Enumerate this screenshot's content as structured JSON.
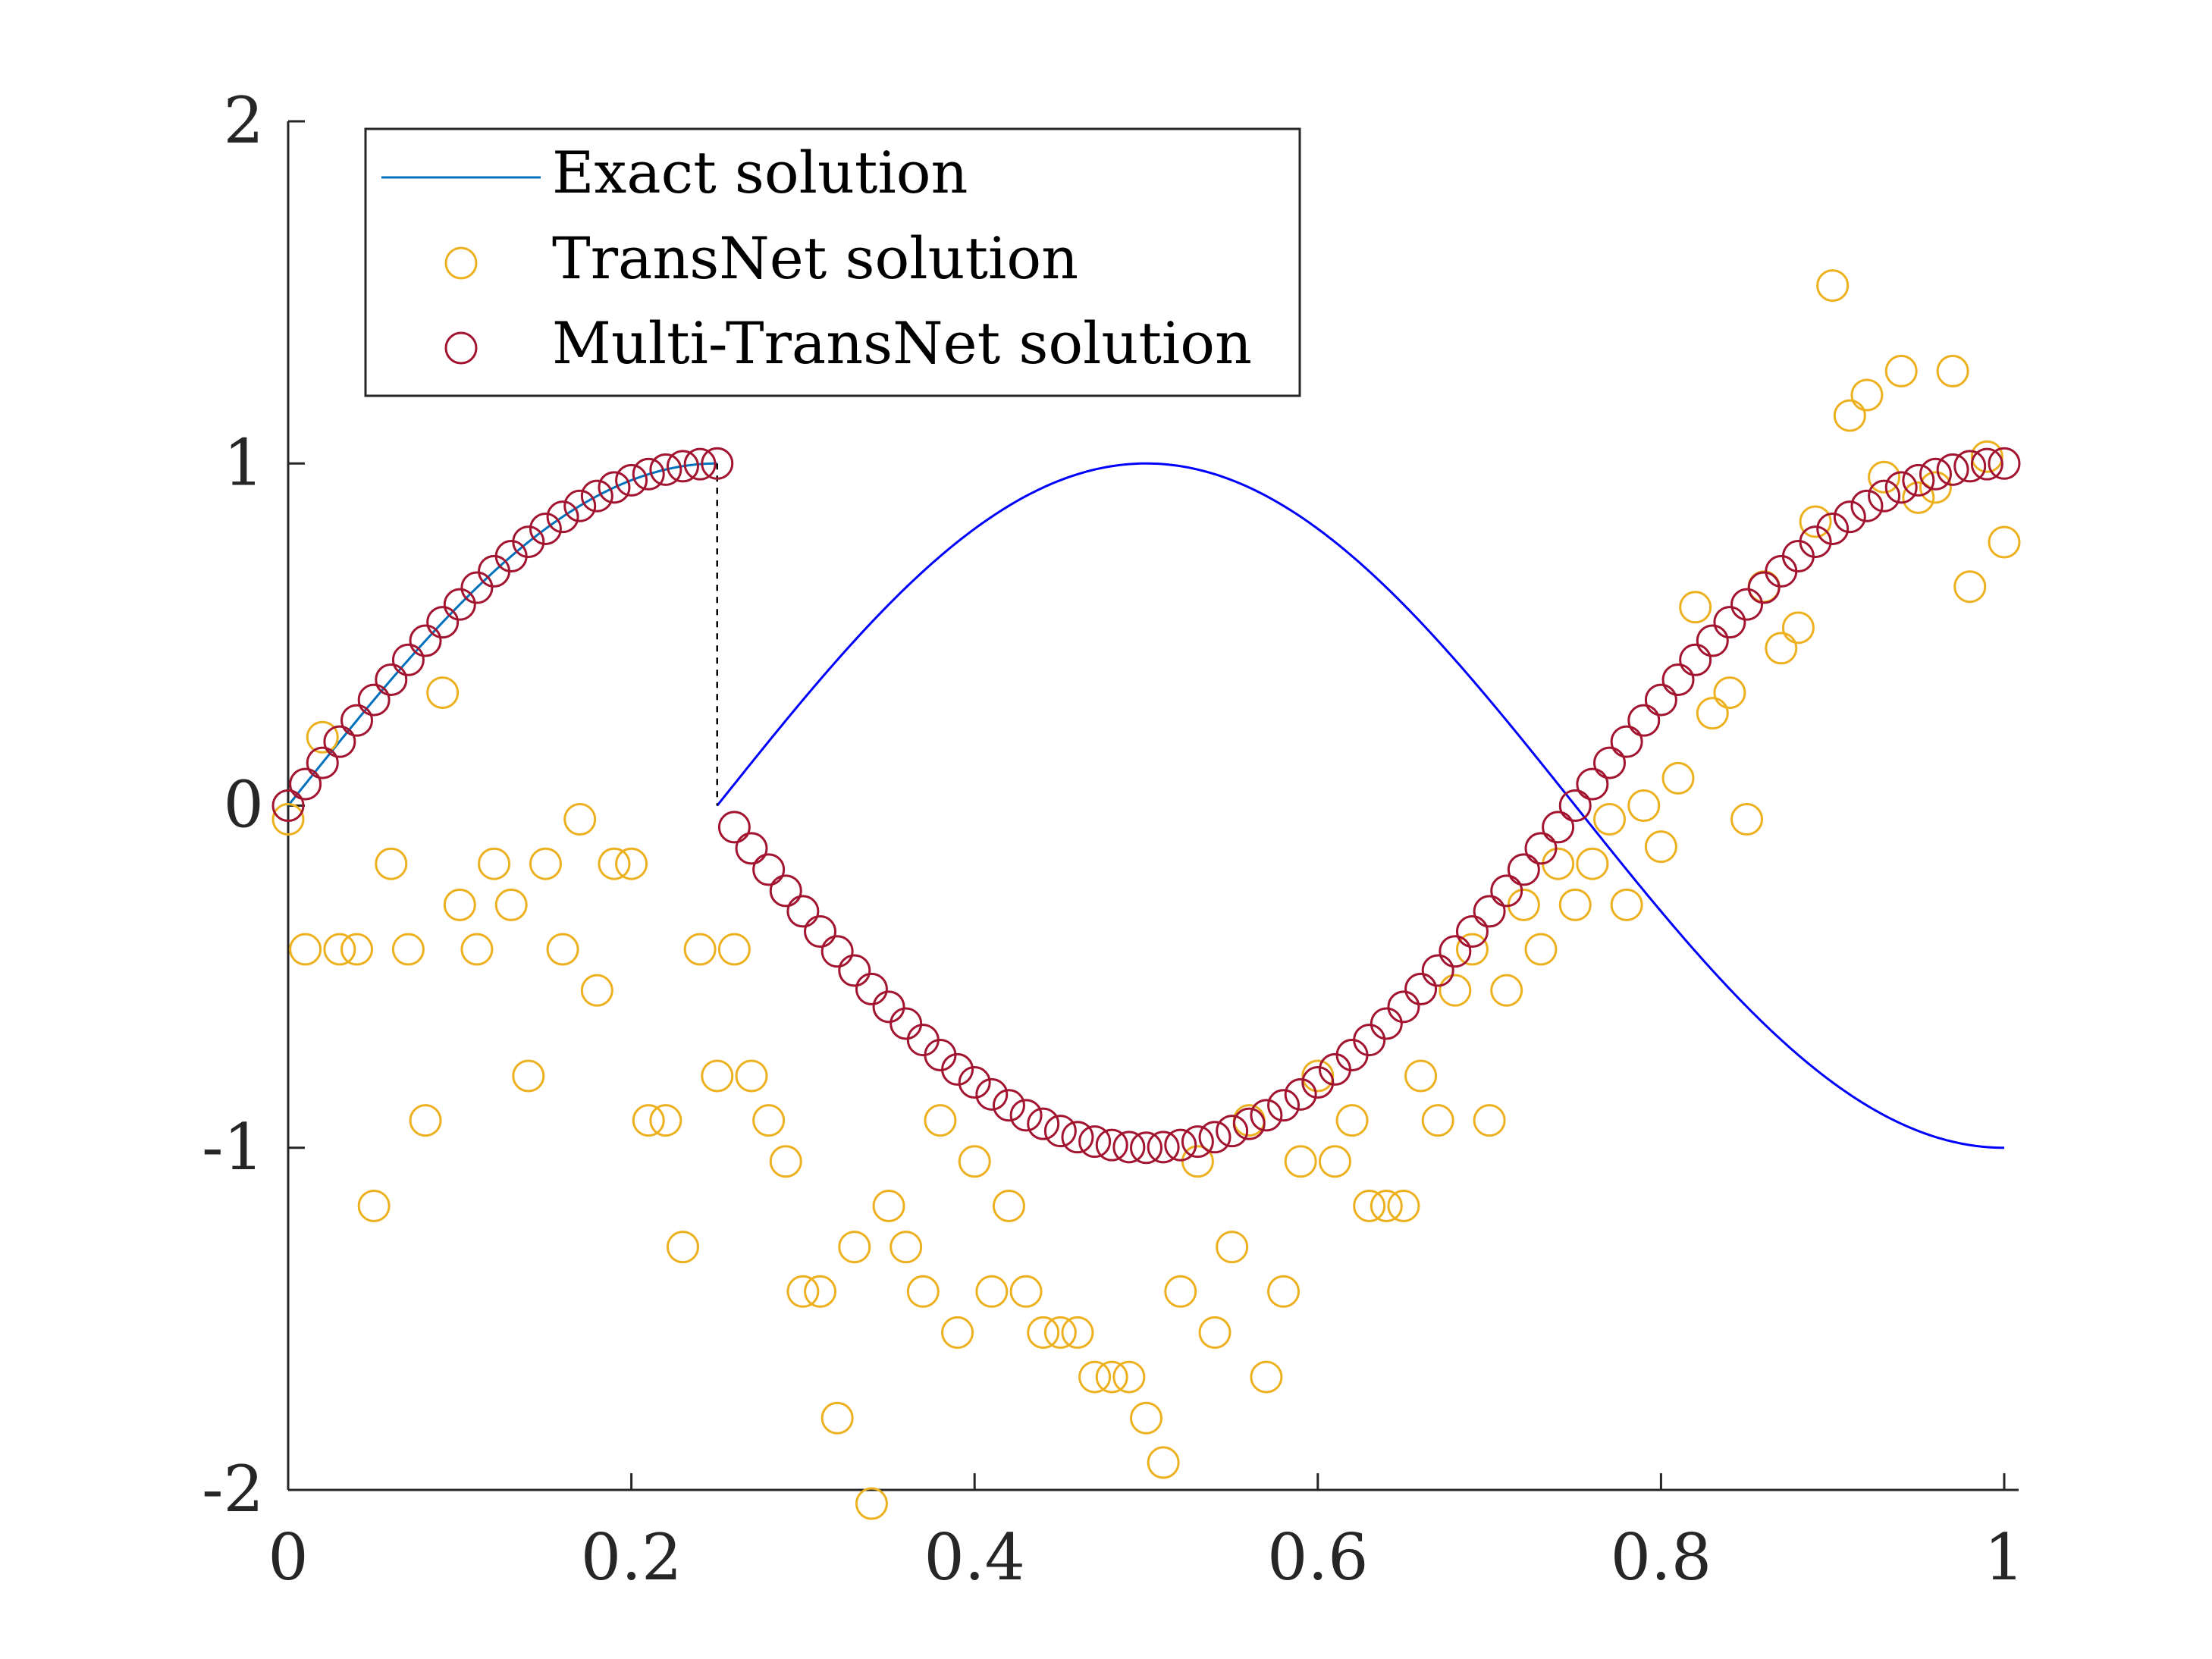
{
  "chart_data": {
    "type": "scatter",
    "title": "",
    "xlabel": "",
    "ylabel": "",
    "xlim": [
      0,
      1
    ],
    "ylim": [
      -2,
      2
    ],
    "x_ticks": [
      0,
      0.2,
      0.4,
      0.6,
      0.8,
      1
    ],
    "x_tick_labels": [
      "0",
      "0.2",
      "0.4",
      "0.6",
      "0.8",
      "1"
    ],
    "y_ticks": [
      -2,
      -1,
      0,
      1,
      2
    ],
    "y_tick_labels": [
      "-2",
      "-1",
      "0",
      "1",
      "2"
    ],
    "grid": false,
    "legend_position": "top-left",
    "legend": [
      {
        "label": "Exact solution",
        "marker": "line",
        "color": "#0072BD"
      },
      {
        "label": "TransNet solution",
        "marker": "circle",
        "color": "#EDB120"
      },
      {
        "label": "Multi-TransNet solution",
        "marker": "circle",
        "color": "#A2142F"
      }
    ],
    "exact_solution": {
      "description_formula": "sin(2*pi*x) for x<0.25; sin(2*pi*x - pi/2) for x>=0.25",
      "discontinuity_x": 0.25,
      "discontinuity_y": [
        0,
        1
      ],
      "color": "#0072BD",
      "line_color_right": "#0000FF",
      "jump_line_style": "dashed"
    },
    "series": [
      {
        "name": "TransNet solution",
        "color": "#EDB120",
        "x": [
          0,
          0.01,
          0.02,
          0.03,
          0.04,
          0.05,
          0.06,
          0.07,
          0.08,
          0.09,
          0.1,
          0.11,
          0.12,
          0.13,
          0.14,
          0.15,
          0.16,
          0.17,
          0.18,
          0.19,
          0.2,
          0.21,
          0.22,
          0.23,
          0.24,
          0.25,
          0.26,
          0.27,
          0.28,
          0.29,
          0.3,
          0.31,
          0.32,
          0.33,
          0.34,
          0.35,
          0.36,
          0.37,
          0.38,
          0.39,
          0.4,
          0.41,
          0.42,
          0.43,
          0.44,
          0.45,
          0.46,
          0.47,
          0.48,
          0.49,
          0.5,
          0.51,
          0.52,
          0.53,
          0.54,
          0.55,
          0.56,
          0.57,
          0.58,
          0.59,
          0.6,
          0.61,
          0.62,
          0.63,
          0.64,
          0.65,
          0.66,
          0.67,
          0.68,
          0.69,
          0.7,
          0.71,
          0.72,
          0.73,
          0.74,
          0.75,
          0.76,
          0.77,
          0.78,
          0.79,
          0.8,
          0.81,
          0.82,
          0.83,
          0.84,
          0.85,
          0.86,
          0.87,
          0.88,
          0.89,
          0.9,
          0.91,
          0.92,
          0.93,
          0.94,
          0.95,
          0.96,
          0.97,
          0.98,
          0.99,
          1.0
        ],
        "y": [
          -0.04,
          -0.42,
          0.2,
          -0.42,
          -0.42,
          -1.17,
          -0.17,
          -0.42,
          -0.92,
          0.33,
          -0.29,
          -0.42,
          -0.17,
          -0.29,
          -0.79,
          -0.17,
          -0.42,
          -0.04,
          -0.54,
          -0.17,
          -0.17,
          -0.92,
          -0.92,
          -1.29,
          -0.42,
          -0.79,
          -0.42,
          -0.79,
          -0.92,
          -1.04,
          -1.42,
          -1.42,
          -1.79,
          -1.29,
          -2.04,
          -1.17,
          -1.29,
          -1.42,
          -0.92,
          -1.54,
          -1.04,
          -1.42,
          -1.17,
          -1.42,
          -1.54,
          -1.54,
          -1.54,
          -1.67,
          -1.67,
          -1.67,
          -1.79,
          -1.92,
          -1.42,
          -1.04,
          -1.54,
          -1.29,
          -0.92,
          -1.67,
          -1.42,
          -1.04,
          -0.79,
          -1.04,
          -0.92,
          -1.17,
          -1.17,
          -1.17,
          -0.79,
          -0.92,
          -0.54,
          -0.42,
          -0.92,
          -0.54,
          -0.29,
          -0.42,
          -0.17,
          -0.29,
          -0.17,
          -0.04,
          -0.29,
          0.0,
          -0.12,
          0.08,
          0.58,
          0.27,
          0.33,
          -0.04,
          0.64,
          0.46,
          0.52,
          0.83,
          1.52,
          1.14,
          1.2,
          0.96,
          1.27,
          0.9,
          0.93,
          1.27,
          0.64,
          1.02,
          0.77
        ]
      },
      {
        "name": "Multi-TransNet solution",
        "color": "#A2142F",
        "x": [
          0,
          0.01,
          0.02,
          0.03,
          0.04,
          0.05,
          0.06,
          0.07,
          0.08,
          0.09,
          0.1,
          0.11,
          0.12,
          0.13,
          0.14,
          0.15,
          0.16,
          0.17,
          0.18,
          0.19,
          0.2,
          0.21,
          0.22,
          0.23,
          0.24,
          0.25,
          0.26,
          0.27,
          0.28,
          0.29,
          0.3,
          0.31,
          0.32,
          0.33,
          0.34,
          0.35,
          0.36,
          0.37,
          0.38,
          0.39,
          0.4,
          0.41,
          0.42,
          0.43,
          0.44,
          0.45,
          0.46,
          0.47,
          0.48,
          0.49,
          0.5,
          0.51,
          0.52,
          0.53,
          0.54,
          0.55,
          0.56,
          0.57,
          0.58,
          0.59,
          0.6,
          0.61,
          0.62,
          0.63,
          0.64,
          0.65,
          0.66,
          0.67,
          0.68,
          0.69,
          0.7,
          0.71,
          0.72,
          0.73,
          0.74,
          0.75,
          0.76,
          0.77,
          0.78,
          0.79,
          0.8,
          0.81,
          0.82,
          0.83,
          0.84,
          0.85,
          0.86,
          0.87,
          0.88,
          0.89,
          0.9,
          0.91,
          0.92,
          0.93,
          0.94,
          0.95,
          0.96,
          0.97,
          0.98,
          0.99,
          1.0
        ],
        "y": [
          0.0,
          0.063,
          0.125,
          0.187,
          0.249,
          0.309,
          0.368,
          0.426,
          0.482,
          0.536,
          0.588,
          0.637,
          0.685,
          0.729,
          0.771,
          0.809,
          0.844,
          0.876,
          0.905,
          0.93,
          0.951,
          0.969,
          0.982,
          0.992,
          0.998,
          1.0,
          -0.063,
          -0.125,
          -0.187,
          -0.249,
          -0.309,
          -0.368,
          -0.426,
          -0.482,
          -0.536,
          -0.588,
          -0.637,
          -0.685,
          -0.729,
          -0.771,
          -0.809,
          -0.844,
          -0.876,
          -0.905,
          -0.93,
          -0.951,
          -0.969,
          -0.982,
          -0.992,
          -0.998,
          -1.0,
          -0.998,
          -0.992,
          -0.982,
          -0.969,
          -0.951,
          -0.93,
          -0.905,
          -0.876,
          -0.844,
          -0.809,
          -0.771,
          -0.729,
          -0.685,
          -0.637,
          -0.588,
          -0.536,
          -0.482,
          -0.426,
          -0.368,
          -0.309,
          -0.249,
          -0.187,
          -0.125,
          -0.063,
          0.0,
          0.063,
          0.125,
          0.187,
          0.249,
          0.309,
          0.368,
          0.426,
          0.482,
          0.536,
          0.588,
          0.637,
          0.685,
          0.729,
          0.771,
          0.809,
          0.844,
          0.876,
          0.905,
          0.93,
          0.951,
          0.969,
          0.982,
          0.992,
          0.998,
          1.0
        ]
      }
    ]
  }
}
